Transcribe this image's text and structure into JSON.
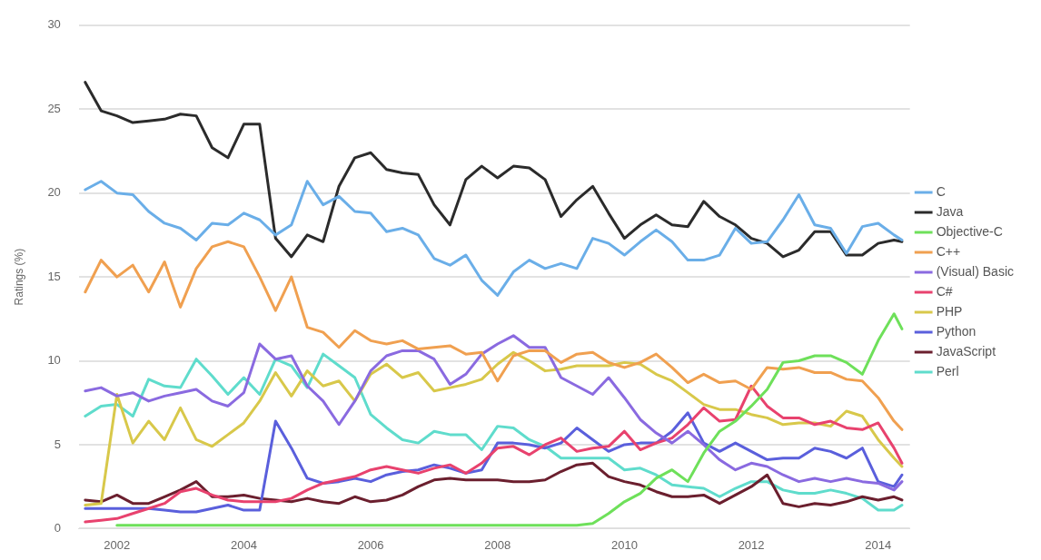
{
  "chart_data": {
    "type": "line",
    "ylabel": "Ratings (%)",
    "x": [
      2001.5,
      2001.75,
      2002,
      2002.25,
      2002.5,
      2002.75,
      2003,
      2003.25,
      2003.5,
      2003.75,
      2004,
      2004.25,
      2004.5,
      2004.75,
      2005,
      2005.25,
      2005.5,
      2005.75,
      2006,
      2006.25,
      2006.5,
      2006.75,
      2007,
      2007.25,
      2007.5,
      2007.75,
      2008,
      2008.25,
      2008.5,
      2008.75,
      2009,
      2009.25,
      2009.5,
      2009.75,
      2010,
      2010.25,
      2010.5,
      2010.75,
      2011,
      2011.25,
      2011.5,
      2011.75,
      2012,
      2012.25,
      2012.5,
      2012.75,
      2013,
      2013.25,
      2013.5,
      2013.75,
      2014,
      2014.25,
      2014.375
    ],
    "series": [
      {
        "name": "C",
        "color": "#6aaee8",
        "values": [
          20.2,
          20.7,
          20.0,
          19.9,
          18.9,
          18.2,
          17.9,
          17.2,
          18.2,
          18.1,
          18.8,
          18.4,
          17.5,
          18.1,
          20.7,
          19.3,
          19.8,
          18.9,
          18.8,
          17.7,
          17.9,
          17.5,
          16.1,
          15.7,
          16.3,
          14.8,
          13.9,
          15.3,
          16.0,
          15.5,
          15.8,
          15.5,
          17.3,
          17.0,
          16.3,
          17.1,
          17.8,
          17.1,
          16.0,
          16.0,
          16.3,
          17.9,
          17.0,
          17.1,
          18.4,
          19.9,
          18.1,
          17.9,
          16.4,
          18.0,
          18.2,
          17.5,
          17.2
        ]
      },
      {
        "name": "Java",
        "color": "#2b2b2b",
        "values": [
          26.6,
          24.9,
          24.6,
          24.2,
          24.3,
          24.4,
          24.7,
          24.6,
          22.7,
          22.1,
          24.1,
          24.1,
          17.3,
          16.2,
          17.5,
          17.1,
          20.4,
          22.1,
          22.4,
          21.4,
          21.2,
          21.1,
          19.3,
          18.1,
          20.8,
          21.6,
          20.9,
          21.6,
          21.5,
          20.8,
          18.6,
          19.6,
          20.4,
          18.8,
          17.3,
          18.1,
          18.7,
          18.1,
          18.0,
          19.5,
          18.6,
          18.1,
          17.3,
          17.0,
          16.2,
          16.6,
          17.7,
          17.7,
          16.3,
          16.3,
          17.0,
          17.2,
          17.1
        ]
      },
      {
        "name": "Objective-C",
        "color": "#6ee05a",
        "values": [
          null,
          null,
          0.2,
          0.2,
          0.2,
          0.2,
          0.2,
          0.2,
          0.2,
          0.2,
          0.2,
          0.2,
          0.2,
          0.2,
          0.2,
          0.2,
          0.2,
          0.2,
          0.2,
          0.2,
          0.2,
          0.2,
          0.2,
          0.2,
          0.2,
          0.2,
          0.2,
          0.2,
          0.2,
          0.2,
          0.2,
          0.2,
          0.3,
          0.9,
          1.6,
          2.1,
          3.0,
          3.5,
          2.8,
          4.5,
          5.8,
          6.4,
          7.3,
          8.3,
          9.9,
          10.0,
          10.3,
          10.3,
          9.9,
          9.2,
          11.2,
          12.8,
          11.9
        ]
      },
      {
        "name": "C++",
        "color": "#f0a050",
        "values": [
          14.1,
          16.0,
          15.0,
          15.7,
          14.1,
          15.9,
          13.2,
          15.5,
          16.8,
          17.1,
          16.8,
          15.0,
          13.0,
          15.0,
          12.0,
          11.7,
          10.8,
          11.8,
          11.2,
          11.0,
          11.2,
          10.7,
          10.8,
          10.9,
          10.4,
          10.5,
          8.8,
          10.3,
          10.6,
          10.6,
          9.9,
          10.4,
          10.5,
          9.9,
          9.6,
          9.9,
          10.4,
          9.6,
          8.7,
          9.2,
          8.7,
          8.8,
          8.3,
          9.6,
          9.5,
          9.6,
          9.3,
          9.3,
          8.9,
          8.8,
          7.8,
          6.4,
          5.9
        ]
      },
      {
        "name": "(Visual) Basic",
        "color": "#8a6ae0",
        "values": [
          8.2,
          8.4,
          7.9,
          8.1,
          7.6,
          7.9,
          8.1,
          8.3,
          7.6,
          7.3,
          8.1,
          11.0,
          10.1,
          10.3,
          8.5,
          7.6,
          6.2,
          7.6,
          9.4,
          10.3,
          10.6,
          10.6,
          10.1,
          8.6,
          9.2,
          10.4,
          11.0,
          11.5,
          10.8,
          10.8,
          9.0,
          8.5,
          8.0,
          9.0,
          7.8,
          6.5,
          5.7,
          5.1,
          5.8,
          5.0,
          4.1,
          3.5,
          3.9,
          3.7,
          3.2,
          2.8,
          3.0,
          2.8,
          3.0,
          2.8,
          2.7,
          2.3,
          2.8
        ]
      },
      {
        "name": "C#",
        "color": "#e8426e",
        "values": [
          0.4,
          0.5,
          0.6,
          0.9,
          1.2,
          1.5,
          2.2,
          2.4,
          2.0,
          1.7,
          1.6,
          1.6,
          1.6,
          1.8,
          2.3,
          2.7,
          2.9,
          3.1,
          3.5,
          3.7,
          3.5,
          3.3,
          3.6,
          3.8,
          3.3,
          3.9,
          4.8,
          4.9,
          4.4,
          5.0,
          5.4,
          4.6,
          4.8,
          4.9,
          5.8,
          4.7,
          5.1,
          5.4,
          6.2,
          7.2,
          6.4,
          6.5,
          8.5,
          7.3,
          6.6,
          6.6,
          6.2,
          6.4,
          6.0,
          5.9,
          6.3,
          4.8,
          3.9
        ]
      },
      {
        "name": "PHP",
        "color": "#d8c84a",
        "values": [
          1.4,
          1.5,
          8.0,
          5.1,
          6.4,
          5.3,
          7.2,
          5.3,
          4.9,
          5.6,
          6.3,
          7.6,
          9.3,
          7.9,
          9.4,
          8.5,
          8.8,
          7.6,
          9.2,
          9.8,
          9.0,
          9.3,
          8.2,
          8.4,
          8.6,
          8.9,
          9.8,
          10.5,
          10.0,
          9.4,
          9.5,
          9.7,
          9.7,
          9.7,
          9.9,
          9.8,
          9.2,
          8.8,
          8.1,
          7.4,
          7.1,
          7.1,
          6.8,
          6.6,
          6.2,
          6.3,
          6.3,
          6.1,
          7.0,
          6.7,
          5.3,
          4.2,
          3.7
        ]
      },
      {
        "name": "Python",
        "color": "#5a5fdc",
        "values": [
          1.2,
          1.2,
          1.2,
          1.2,
          1.2,
          1.1,
          1.0,
          1.0,
          1.2,
          1.4,
          1.1,
          1.1,
          6.4,
          4.8,
          3.0,
          2.7,
          2.8,
          3.0,
          2.8,
          3.2,
          3.4,
          3.5,
          3.8,
          3.6,
          3.3,
          3.5,
          5.1,
          5.1,
          5.0,
          4.8,
          5.1,
          6.0,
          5.3,
          4.6,
          5.0,
          5.1,
          5.1,
          5.8,
          6.9,
          5.1,
          4.6,
          5.1,
          4.6,
          4.1,
          4.2,
          4.2,
          4.8,
          4.6,
          4.2,
          4.8,
          2.8,
          2.5,
          3.2
        ]
      },
      {
        "name": "JavaScript",
        "color": "#6b1f2e",
        "values": [
          1.7,
          1.6,
          2.0,
          1.5,
          1.5,
          1.9,
          2.3,
          2.8,
          1.9,
          1.9,
          2.0,
          1.8,
          1.7,
          1.6,
          1.8,
          1.6,
          1.5,
          1.9,
          1.6,
          1.7,
          2.0,
          2.5,
          2.9,
          3.0,
          2.9,
          2.9,
          2.9,
          2.8,
          2.8,
          2.9,
          3.4,
          3.8,
          3.9,
          3.1,
          2.8,
          2.6,
          2.2,
          1.9,
          1.9,
          2.0,
          1.5,
          2.0,
          2.5,
          3.2,
          1.5,
          1.3,
          1.5,
          1.4,
          1.6,
          1.9,
          1.7,
          1.9,
          1.7
        ]
      },
      {
        "name": "Perl",
        "color": "#5fdccc",
        "values": [
          6.7,
          7.3,
          7.4,
          6.7,
          8.9,
          8.5,
          8.4,
          10.1,
          9.1,
          8.0,
          9.0,
          8.0,
          10.1,
          9.7,
          8.4,
          10.4,
          9.7,
          9.0,
          6.8,
          6.0,
          5.3,
          5.1,
          5.8,
          5.6,
          5.6,
          4.7,
          6.1,
          6.0,
          5.3,
          4.9,
          4.2,
          4.2,
          4.2,
          4.2,
          3.5,
          3.6,
          3.2,
          2.6,
          2.5,
          2.4,
          1.9,
          2.4,
          2.8,
          2.8,
          2.3,
          2.1,
          2.1,
          2.3,
          2.1,
          1.8,
          1.1,
          1.1,
          1.4
        ]
      }
    ],
    "xlim": [
      2001.4,
      2014.5
    ],
    "xticks": [
      2002,
      2004,
      2006,
      2008,
      2010,
      2012,
      2014
    ],
    "ylim": [
      0,
      30
    ],
    "yticks": [
      0,
      5,
      10,
      15,
      20,
      25,
      30
    ],
    "grid": "y",
    "legend": "right"
  }
}
